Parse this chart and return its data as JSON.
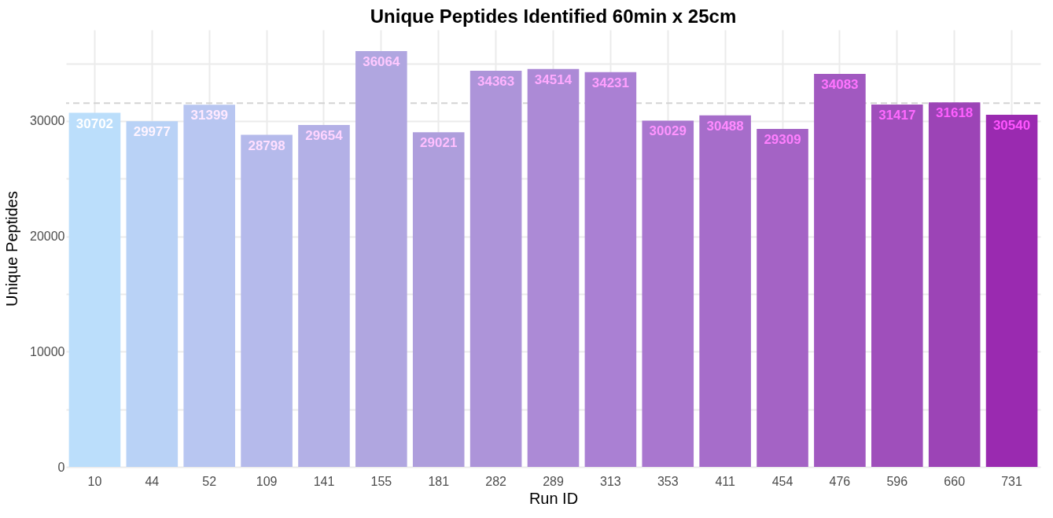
{
  "chart_data": {
    "type": "bar",
    "title": "Unique Peptides Identified 60min x 25cm",
    "xlabel": "Run ID",
    "ylabel": "Unique Peptides",
    "categories": [
      "10",
      "44",
      "52",
      "109",
      "141",
      "155",
      "181",
      "282",
      "289",
      "313",
      "353",
      "411",
      "454",
      "476",
      "596",
      "660",
      "731"
    ],
    "values": [
      30702,
      29977,
      31399,
      28798,
      29654,
      36064,
      29021,
      34363,
      34514,
      34231,
      30029,
      30488,
      29309,
      34083,
      31417,
      31618,
      30540
    ],
    "colors": [
      "#bbdefb",
      "#b9d2f6",
      "#b8c6f1",
      "#b5baeb",
      "#b3b0e6",
      "#b0a6e0",
      "#ae9edc",
      "#ad94d9",
      "#ac8ad6",
      "#aa80d3",
      "#a977cf",
      "#a66dca",
      "#a463c5",
      "#a159c0",
      "#9f4fbb",
      "#9c44b6",
      "#9a2ab0"
    ],
    "ylim": [
      0,
      37900
    ],
    "yticks": [
      0,
      {
        "value": 5000,
        "label": null
      },
      10000,
      {
        "value": 15000,
        "label": null
      },
      20000,
      {
        "value": 25000,
        "label": null
      },
      30000,
      {
        "value": 35000,
        "label": null
      }
    ],
    "ref_lines": [
      {
        "axis": "y",
        "value": 31542,
        "label": null,
        "color": "#d3d3d3",
        "line_style": "dashed"
      }
    ],
    "data_labels": true,
    "grid": true
  }
}
